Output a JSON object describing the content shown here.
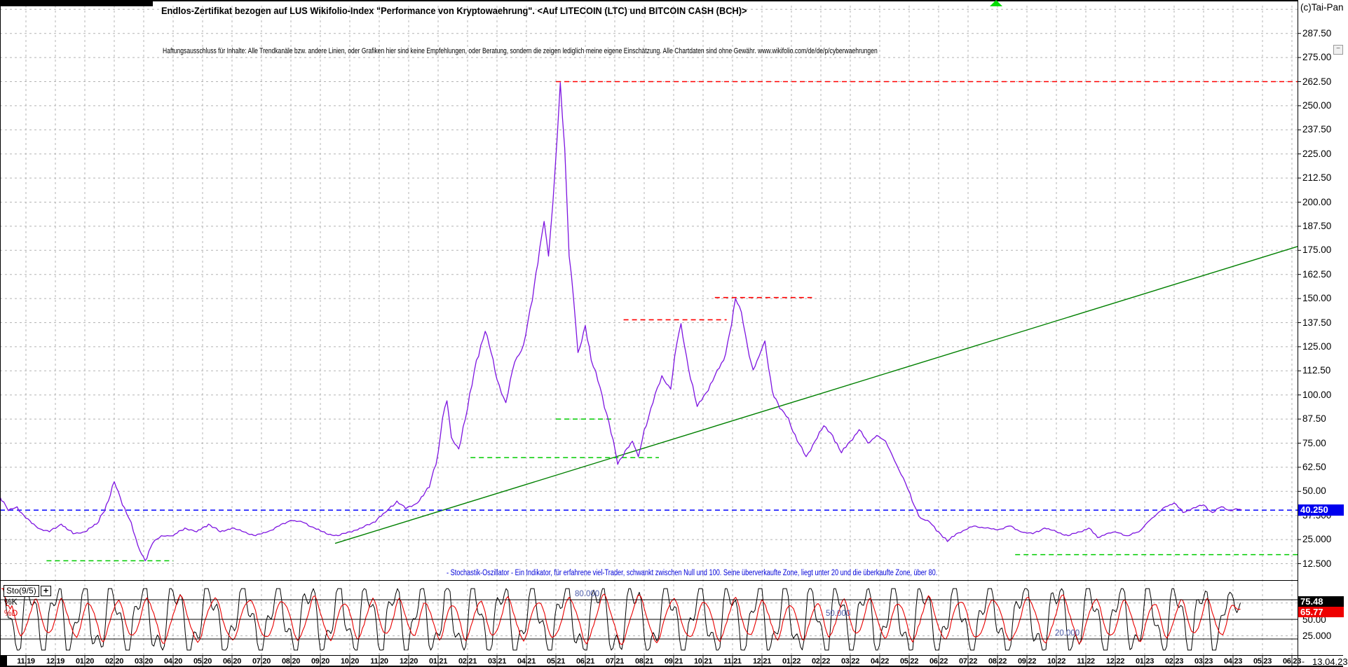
{
  "meta": {
    "copyright": "(c)Tai-Pan"
  },
  "header": {
    "title": "Endlos-Zertifikat bezogen auf LUS Wikifolio-Index \"Performance von Kryptowaehrung\". <Auf LITECOIN (LTC) und BITCOIN CASH (BCH)>",
    "disclaimer": "Haftungsausschluss für Inhalte: Alle Trendkanäle bzw. andere Linien, oder Grafiken hier sind keine Empfehlungen, oder Beratung, sondern die zeigen lediglich meine eigene Einschätzung. Alle Chartdaten sind ohne Gewähr.  www.wikifolio.com/de/de/p/cyberwaehrungen"
  },
  "icons": {
    "expand": "+",
    "collapse": "−",
    "marker": "green-up-triangle"
  },
  "price_axis": {
    "labels": [
      "287.50",
      "275.00",
      "262.50",
      "250.00",
      "237.50",
      "225.00",
      "212.50",
      "200.00",
      "187.50",
      "175.00",
      "162.50",
      "150.00",
      "137.50",
      "125.00",
      "112.50",
      "100.00",
      "87.50",
      "75.00",
      "62.50",
      "50.00",
      "37.500",
      "25.000",
      "12.500"
    ],
    "last_price": "40.250"
  },
  "x_axis": {
    "months": [
      "11.19",
      "12.19",
      "01.20",
      "02.20",
      "03.20",
      "04.20",
      "05.20",
      "06.20",
      "07.20",
      "08.20",
      "09.20",
      "10.20",
      "11.20",
      "12.20",
      "01.21",
      "02.21",
      "03.21",
      "04.21",
      "05.21",
      "06.21",
      "07.21",
      "08.21",
      "09.21",
      "10.21",
      "11.21",
      "12.21",
      "01.22",
      "02.22",
      "03.22",
      "04.22",
      "05.22",
      "06.22",
      "07.22",
      "08.22",
      "09.22",
      "10.22",
      "11.22",
      "12.22",
      "01.23",
      "02.23",
      "03.23",
      "04.23",
      "05.23",
      "06.23"
    ],
    "right_separator": "-",
    "last_date": "13.04.23"
  },
  "stochastic": {
    "indicator_label": "Sto(9/5)",
    "k_label": "%K",
    "d_label": "%D",
    "k_value": "75.48",
    "d_value": "65.77",
    "axis_50": "50.00",
    "axis_25": "25.000",
    "levels": [
      {
        "label": "80.000",
        "value": 80,
        "x": 820
      },
      {
        "label": "50.000",
        "value": 50,
        "x": 1178
      },
      {
        "label": "20.000",
        "value": 20,
        "x": 1505
      }
    ],
    "annotation": "- Stochastik-Oszillator - Ein Indikator, für erfahrene viel-Trader, schwankt zwischen Null und 100. Seine überverkaufte Zone, liegt unter 20 und die überkaufte Zone, über 80."
  },
  "colors": {
    "price": "#7d14e0",
    "trend": "#008000",
    "resistance": "#ff0000",
    "support": "#00cc00",
    "last_price_line": "#0000ff",
    "k_line": "#000000",
    "d_line": "#e80000",
    "grid": "#b4b4b4",
    "annotation": "#0000d8",
    "level_label": "#4a5aa8",
    "k_badge_bg": "#000000",
    "d_badge_bg": "#ee0000",
    "price_badge_bg": "#0000ee"
  },
  "chart_data": {
    "type": "line",
    "title": "Endlos-Zertifikat bezogen auf LUS Wikifolio-Index \"Performance von Kryptowaehrung\". <Auf LITECOIN (LTC) und BITCOIN CASH (BCH)>",
    "x_unit": "months since 11.2019 (one tick per month)",
    "y_axis": {
      "min": 0,
      "max": 300,
      "grid_step": 12.5
    },
    "last_price": 40.25,
    "series": [
      {
        "name": "price",
        "color": "#7d14e0",
        "style": "solid",
        "points": [
          [
            -0.9,
            48
          ],
          [
            -0.6,
            40
          ],
          [
            -0.3,
            42
          ],
          [
            0,
            36
          ],
          [
            0.4,
            31
          ],
          [
            0.8,
            29
          ],
          [
            1.2,
            33
          ],
          [
            1.6,
            28
          ],
          [
            2,
            29
          ],
          [
            2.4,
            33
          ],
          [
            2.8,
            45
          ],
          [
            3,
            55
          ],
          [
            3.2,
            47
          ],
          [
            3.5,
            36
          ],
          [
            3.8,
            22
          ],
          [
            4.05,
            14
          ],
          [
            4.3,
            23
          ],
          [
            4.6,
            27
          ],
          [
            5,
            27
          ],
          [
            5.4,
            31
          ],
          [
            5.8,
            29
          ],
          [
            6.2,
            33
          ],
          [
            6.6,
            29
          ],
          [
            7,
            31
          ],
          [
            7.4,
            29
          ],
          [
            7.8,
            27
          ],
          [
            8.2,
            29
          ],
          [
            8.6,
            32
          ],
          [
            9,
            35
          ],
          [
            9.4,
            34
          ],
          [
            9.8,
            31
          ],
          [
            10.2,
            28
          ],
          [
            10.6,
            27
          ],
          [
            11,
            29
          ],
          [
            11.4,
            31
          ],
          [
            11.8,
            34
          ],
          [
            12.2,
            39
          ],
          [
            12.6,
            45
          ],
          [
            12.9,
            41
          ],
          [
            13.3,
            44
          ],
          [
            13.7,
            52
          ],
          [
            14,
            70
          ],
          [
            14.15,
            88
          ],
          [
            14.3,
            97
          ],
          [
            14.45,
            78
          ],
          [
            14.7,
            72
          ],
          [
            15,
            93
          ],
          [
            15.3,
            118
          ],
          [
            15.6,
            133
          ],
          [
            15.8,
            122
          ],
          [
            16,
            108
          ],
          [
            16.3,
            96
          ],
          [
            16.6,
            117
          ],
          [
            16.9,
            126
          ],
          [
            17.2,
            149
          ],
          [
            17.45,
            176
          ],
          [
            17.6,
            190
          ],
          [
            17.75,
            172
          ],
          [
            17.9,
            200
          ],
          [
            18.05,
            235
          ],
          [
            18.15,
            262
          ],
          [
            18.3,
            228
          ],
          [
            18.45,
            172
          ],
          [
            18.6,
            150
          ],
          [
            18.75,
            122
          ],
          [
            19,
            136
          ],
          [
            19.2,
            118
          ],
          [
            19.5,
            104
          ],
          [
            19.8,
            86
          ],
          [
            20.1,
            64
          ],
          [
            20.35,
            71
          ],
          [
            20.6,
            76
          ],
          [
            20.8,
            68
          ],
          [
            21,
            82
          ],
          [
            21.3,
            96
          ],
          [
            21.6,
            110
          ],
          [
            21.9,
            103
          ],
          [
            22.1,
            126
          ],
          [
            22.25,
            137
          ],
          [
            22.5,
            114
          ],
          [
            22.8,
            94
          ],
          [
            23.1,
            101
          ],
          [
            23.4,
            110
          ],
          [
            23.7,
            118
          ],
          [
            23.9,
            132
          ],
          [
            24.1,
            150
          ],
          [
            24.3,
            143
          ],
          [
            24.5,
            126
          ],
          [
            24.7,
            113
          ],
          [
            24.9,
            120
          ],
          [
            25.1,
            128
          ],
          [
            25.35,
            102
          ],
          [
            25.6,
            93
          ],
          [
            25.9,
            88
          ],
          [
            26.2,
            76
          ],
          [
            26.5,
            68
          ],
          [
            26.8,
            76
          ],
          [
            27.1,
            84
          ],
          [
            27.4,
            79
          ],
          [
            27.7,
            70
          ],
          [
            28,
            76
          ],
          [
            28.3,
            82
          ],
          [
            28.6,
            75
          ],
          [
            28.9,
            79
          ],
          [
            29.2,
            76
          ],
          [
            29.5,
            66
          ],
          [
            29.8,
            57
          ],
          [
            30.1,
            45
          ],
          [
            30.4,
            36
          ],
          [
            30.7,
            34
          ],
          [
            31,
            29
          ],
          [
            31.3,
            24
          ],
          [
            31.6,
            28
          ],
          [
            31.9,
            30
          ],
          [
            32.2,
            32
          ],
          [
            32.6,
            31
          ],
          [
            33,
            30
          ],
          [
            33.4,
            32
          ],
          [
            33.8,
            29
          ],
          [
            34.2,
            28
          ],
          [
            34.6,
            31
          ],
          [
            35,
            29
          ],
          [
            35.4,
            27
          ],
          [
            35.8,
            29
          ],
          [
            36.1,
            31
          ],
          [
            36.4,
            26
          ],
          [
            36.7,
            28
          ],
          [
            37,
            29
          ],
          [
            37.4,
            27
          ],
          [
            37.8,
            29
          ],
          [
            38.1,
            34
          ],
          [
            38.4,
            38
          ],
          [
            38.7,
            42
          ],
          [
            39,
            44
          ],
          [
            39.3,
            39
          ],
          [
            39.6,
            41
          ],
          [
            40,
            43
          ],
          [
            40.3,
            39
          ],
          [
            40.6,
            42
          ],
          [
            40.9,
            40
          ],
          [
            41.1,
            41
          ],
          [
            41.3,
            40.25
          ]
        ]
      },
      {
        "name": "uptrend-line",
        "color": "#008000",
        "style": "solid",
        "width": 1.4,
        "points": [
          [
            10.5,
            23
          ],
          [
            43.2,
            177
          ]
        ]
      },
      {
        "name": "resistance-262.50",
        "color": "#ff0000",
        "style": "dashed",
        "width": 1.6,
        "points": [
          [
            18.0,
            262.5
          ],
          [
            43.2,
            262.5
          ]
        ]
      },
      {
        "name": "resistance-150",
        "color": "#ff0000",
        "style": "dashed",
        "width": 1.6,
        "points": [
          [
            23.4,
            150.5
          ],
          [
            26.7,
            150.5
          ]
        ]
      },
      {
        "name": "resistance-139",
        "color": "#ff0000",
        "style": "dashed",
        "width": 1.6,
        "points": [
          [
            20.3,
            139
          ],
          [
            23.8,
            139
          ]
        ]
      },
      {
        "name": "support-87.5",
        "color": "#00cc00",
        "style": "dashed",
        "width": 1.5,
        "points": [
          [
            18.0,
            87.5
          ],
          [
            19.9,
            87.5
          ]
        ]
      },
      {
        "name": "support-67.5",
        "color": "#00cc00",
        "style": "dashed",
        "width": 1.5,
        "points": [
          [
            15.1,
            67.5
          ],
          [
            21.5,
            67.5
          ]
        ]
      },
      {
        "name": "support-14",
        "color": "#00cc00",
        "style": "dashed",
        "width": 1.5,
        "points": [
          [
            0.7,
            14
          ],
          [
            5.0,
            14
          ]
        ]
      },
      {
        "name": "support-17",
        "color": "#00cc00",
        "style": "dashed",
        "width": 1.5,
        "points": [
          [
            33.6,
            17.2
          ],
          [
            43.2,
            17.2
          ]
        ]
      },
      {
        "name": "last-price-line-40.250",
        "color": "#0000ff",
        "style": "dashed",
        "width": 1.5,
        "points": [
          [
            -0.9,
            40.25
          ],
          [
            43.2,
            40.25
          ]
        ]
      }
    ],
    "stochastic": {
      "type": "line",
      "indicator": "Sto(9/5)",
      "range": [
        0,
        100
      ],
      "levels": [
        80,
        50,
        20
      ],
      "cycles_per_month": 1,
      "k_last": 75.48,
      "d_last": 65.77
    }
  }
}
